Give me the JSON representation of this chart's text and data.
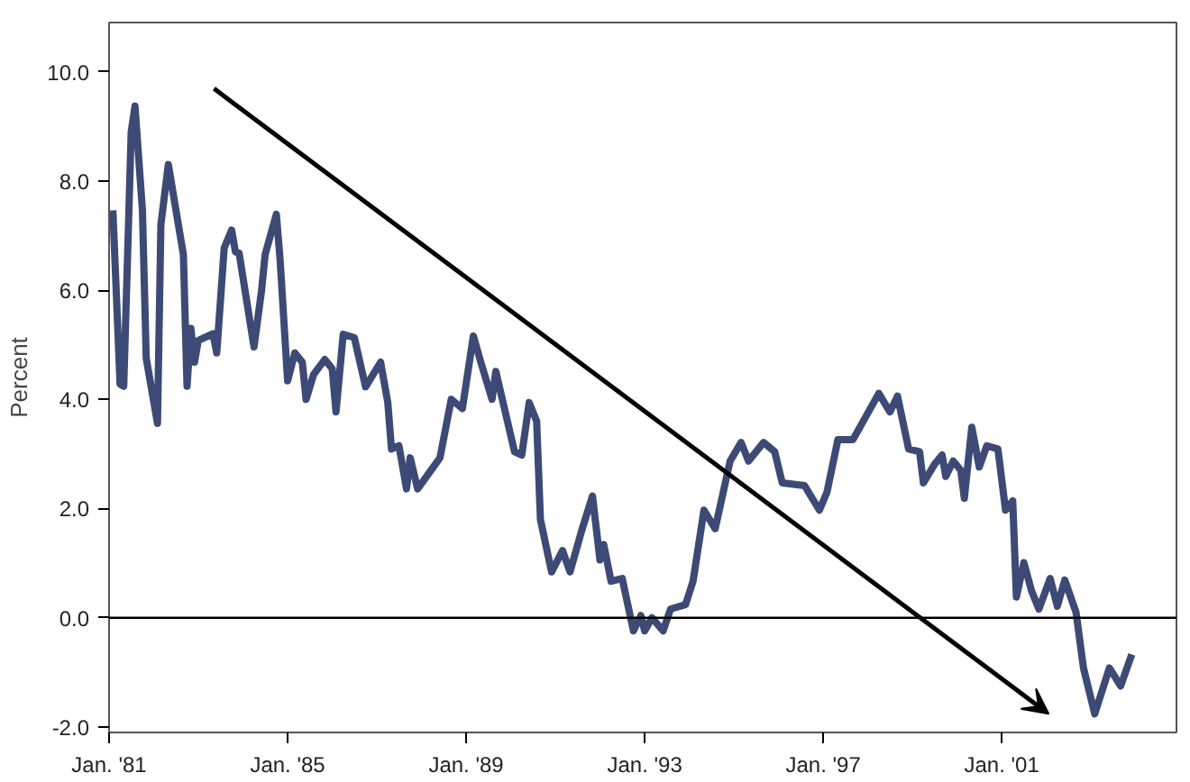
{
  "chart_data": {
    "type": "line",
    "ylabel": "Percent",
    "x": [
      "1981-02",
      "1981-04",
      "1981-05",
      "1981-07",
      "1981-08",
      "1981-10",
      "1981-11",
      "1982-02",
      "1982-03",
      "1982-05",
      "1982-09",
      "1982-10",
      "1982-11",
      "1982-12",
      "1983-01",
      "1983-05",
      "1983-06",
      "1983-08",
      "1983-10",
      "1983-11",
      "1983-12",
      "1984-04",
      "1984-06",
      "1984-07",
      "1984-10",
      "1984-11",
      "1985-01",
      "1985-03",
      "1985-05",
      "1985-06",
      "1985-08",
      "1985-11",
      "1986-01",
      "1986-02",
      "1986-04",
      "1986-07",
      "1986-10",
      "1987-02",
      "1987-04",
      "1987-05",
      "1987-07",
      "1987-09",
      "1987-10",
      "1987-12",
      "1988-06",
      "1988-09",
      "1988-12",
      "1989-03",
      "1989-05",
      "1989-08",
      "1989-09",
      "1990-02",
      "1990-04",
      "1990-06",
      "1990-08",
      "1990-09",
      "1990-12",
      "1991-03",
      "1991-05",
      "1991-08",
      "1991-11",
      "1992-01",
      "1992-02",
      "1992-04",
      "1992-07",
      "1992-10",
      "1992-12",
      "1993-01",
      "1993-03",
      "1993-06",
      "1993-08",
      "1993-12",
      "1994-02",
      "1994-05",
      "1994-08",
      "1994-12",
      "1995-03",
      "1995-05",
      "1995-09",
      "1995-12",
      "1996-02",
      "1996-08",
      "1996-12",
      "1997-02",
      "1997-05",
      "1997-09",
      "1998-04",
      "1998-07",
      "1998-09",
      "1998-12",
      "1999-03",
      "1999-04",
      "1999-07",
      "1999-09",
      "1999-10",
      "1999-12",
      "2000-02",
      "2000-03",
      "2000-05",
      "2000-07",
      "2000-09",
      "2000-12",
      "2001-02",
      "2001-04",
      "2001-05",
      "2001-07",
      "2001-09",
      "2001-11",
      "2002-02",
      "2002-04",
      "2002-06",
      "2002-09",
      "2002-11",
      "2003-02",
      "2003-06",
      "2003-09",
      "2003-12"
    ],
    "series": [
      {
        "color": "#3d4a75",
        "values": [
          7.46,
          4.28,
          4.24,
          8.9,
          9.37,
          7.46,
          4.75,
          3.56,
          7.2,
          8.3,
          6.65,
          4.24,
          5.3,
          4.68,
          5.08,
          5.2,
          4.85,
          6.77,
          7.1,
          6.7,
          6.68,
          4.96,
          5.98,
          6.65,
          7.39,
          6.54,
          4.34,
          4.85,
          4.68,
          4.0,
          4.45,
          4.73,
          4.56,
          3.77,
          5.19,
          5.13,
          4.23,
          4.68,
          3.94,
          3.09,
          3.15,
          2.36,
          2.93,
          2.36,
          2.93,
          4.0,
          3.83,
          5.16,
          4.68,
          4.0,
          4.51,
          3.04,
          2.98,
          3.94,
          3.6,
          1.8,
          0.84,
          1.23,
          0.84,
          1.57,
          2.23,
          1.06,
          1.34,
          0.67,
          0.72,
          -0.24,
          0.04,
          -0.24,
          0.0,
          -0.24,
          0.16,
          0.24,
          0.67,
          1.97,
          1.63,
          2.87,
          3.21,
          2.87,
          3.21,
          3.04,
          2.47,
          2.42,
          1.97,
          2.3,
          3.26,
          3.26,
          4.11,
          3.77,
          4.06,
          3.09,
          3.04,
          2.47,
          2.81,
          2.98,
          2.59,
          2.87,
          2.7,
          2.19,
          3.49,
          2.76,
          3.15,
          3.09,
          1.97,
          2.14,
          0.38,
          1.01,
          0.5,
          0.16,
          0.72,
          0.21,
          0.69,
          0.1,
          -0.92,
          -1.76,
          -0.92,
          -1.25,
          -0.67
        ]
      }
    ],
    "xlim": [
      "1981-01",
      "2004-12"
    ],
    "ylim": [
      -2.1,
      10.9
    ],
    "xticks": [
      {
        "value": "1981-01",
        "label": "Jan. '81"
      },
      {
        "value": "1985-01",
        "label": "Jan. '85"
      },
      {
        "value": "1989-01",
        "label": "Jan. '89"
      },
      {
        "value": "1993-01",
        "label": "Jan. '93"
      },
      {
        "value": "1997-01",
        "label": "Jan. '97"
      },
      {
        "value": "2001-01",
        "label": "Jan. '01"
      }
    ],
    "yticks": [
      {
        "value": -2,
        "label": "-2.0"
      },
      {
        "value": 0,
        "label": "0.0"
      },
      {
        "value": 2,
        "label": "2.0"
      },
      {
        "value": 4,
        "label": "4.0"
      },
      {
        "value": 6,
        "label": "6.0"
      },
      {
        "value": 8,
        "label": "8.0"
      },
      {
        "value": 10,
        "label": "10.0"
      }
    ],
    "ref_lines": [
      {
        "axis": "y",
        "value": 0,
        "color": "#000000"
      }
    ],
    "grid": false,
    "marker": "none",
    "line_style": "solid"
  }
}
